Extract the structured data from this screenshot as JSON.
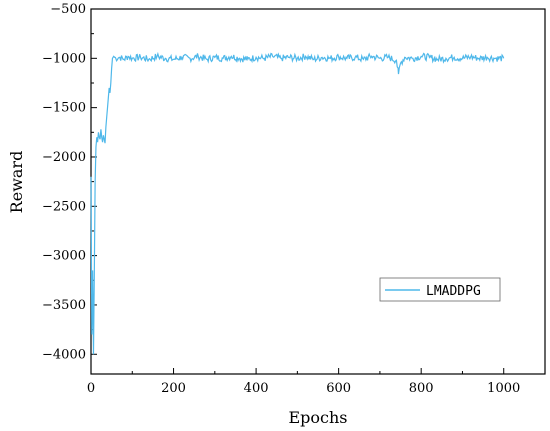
{
  "chart_data": {
    "type": "line",
    "xlabel": "Epochs",
    "ylabel": "Reward",
    "xlim": [
      0,
      1100
    ],
    "ylim": [
      -4200,
      -500
    ],
    "xticks": [
      0,
      200,
      400,
      600,
      800,
      1000
    ],
    "yticks": [
      -4000,
      -3500,
      -3000,
      -2500,
      -2000,
      -1500,
      -1000,
      -500
    ],
    "grid": false,
    "legend_position": "right",
    "series": [
      {
        "name": "LMADDPG",
        "color": "#4fb8ea",
        "x": [
          0,
          2,
          4,
          6,
          8,
          10,
          12,
          14,
          16,
          18,
          20,
          22,
          24,
          26,
          28,
          30,
          32,
          34,
          36,
          38,
          40,
          42,
          44,
          46,
          48,
          50,
          52,
          55,
          60,
          70,
          80,
          90,
          100,
          120,
          140,
          160,
          180,
          200,
          220,
          240,
          260,
          280,
          300,
          320,
          340,
          360,
          380,
          400,
          420,
          440,
          460,
          480,
          500,
          520,
          540,
          560,
          580,
          600,
          620,
          640,
          660,
          680,
          700,
          720,
          740,
          745,
          750,
          760,
          780,
          800,
          820,
          840,
          860,
          880,
          900,
          920,
          940,
          960,
          980,
          1000
        ],
        "values": [
          -2200,
          -3800,
          -3150,
          -4000,
          -3200,
          -2250,
          -1900,
          -1800,
          -1850,
          -1750,
          -1800,
          -1820,
          -1720,
          -1800,
          -1850,
          -1780,
          -1820,
          -1860,
          -1700,
          -1600,
          -1500,
          -1400,
          -1300,
          -1350,
          -1250,
          -1100,
          -1000,
          -980,
          -1000,
          -990,
          -1010,
          -980,
          -1000,
          -990,
          -1010,
          -980,
          -1000,
          -1010,
          -990,
          -1000,
          -980,
          -1010,
          -990,
          -1000,
          -980,
          -1000,
          -1010,
          -990,
          -1000,
          -980,
          -1000,
          -990,
          -1000,
          -980,
          -1010,
          -990,
          -1000,
          -985,
          -1000,
          -990,
          -1010,
          -980,
          -1000,
          -990,
          -1020,
          -1160,
          -1050,
          -990,
          -1000,
          -980,
          -990,
          -1010,
          -1000,
          -990,
          -1000,
          -985,
          -1000,
          -990,
          -1000,
          -1000
        ]
      }
    ]
  }
}
